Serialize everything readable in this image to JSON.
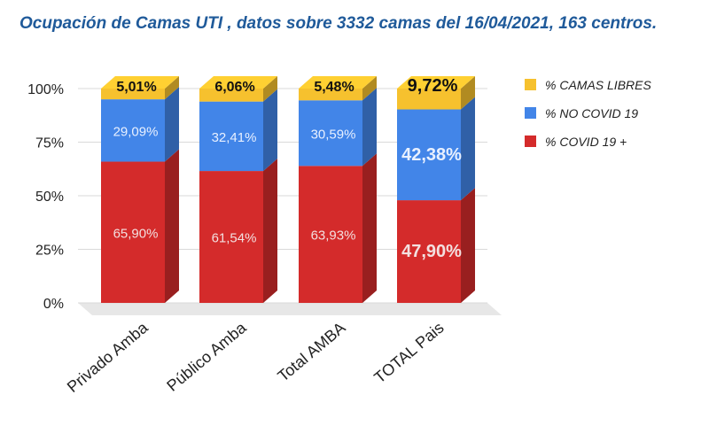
{
  "title": "Ocupación de Camas UTI , datos sobre 3332 camas del 16/04/2021, 163 centros.",
  "chart_data": {
    "type": "bar",
    "stacked": true,
    "categories": [
      "Privado Amba",
      "Público Amba",
      "Total AMBA",
      "TOTAL Pais"
    ],
    "series": [
      {
        "name": "% COVID 19 +",
        "color": "#d42b2b",
        "values": [
          65.9,
          61.54,
          63.93,
          47.9
        ],
        "labels": [
          "65,90%",
          "61,54%",
          "63,93%",
          "47,90%"
        ]
      },
      {
        "name": "% NO COVID 19",
        "color": "#4285e8",
        "values": [
          29.09,
          32.41,
          30.59,
          42.38
        ],
        "labels": [
          "29,09%",
          "32,41%",
          "30,59%",
          "42,38%"
        ]
      },
      {
        "name": "% CAMAS LIBRES",
        "color": "#f6c12e",
        "values": [
          5.01,
          6.06,
          5.48,
          9.72
        ],
        "labels": [
          "5,01%",
          "6,06%",
          "5,48%",
          "9,72%"
        ]
      }
    ],
    "yticks": [
      "0%",
      "25%",
      "50%",
      "75%",
      "100%"
    ],
    "ylim": [
      0,
      100
    ],
    "legend_order": [
      "% CAMAS LIBRES",
      "% NO COVID 19",
      "% COVID 19 +"
    ],
    "legend_position": "right",
    "grid": true
  }
}
